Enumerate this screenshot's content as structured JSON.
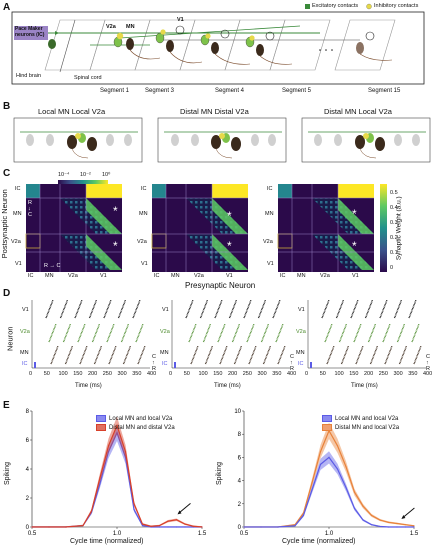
{
  "panelA": {
    "letter": "A",
    "legend_excitatory": "Excitatory contacts",
    "legend_inhibitory": "Inhibitory contacts",
    "pacemaker": "Pace Maker\nneurons (IC)",
    "v2a": "V2a",
    "mn": "MN",
    "v1": "V1",
    "hindbrain": "Hind brain",
    "spinal": "Spinal cord",
    "seg1": "Segment 1",
    "seg3": "Segment 3",
    "seg4": "Segment 4",
    "seg5": "Segment 5",
    "seg15": "Segment 15",
    "colors": {
      "excitatory": "#3a8a3a",
      "inhibitory": "#e6d94a",
      "pacemaker": "#9b84c6"
    }
  },
  "panelB": {
    "letter": "B",
    "titles": [
      "Local MN Local V2a",
      "Distal MN Distal V2a",
      "Distal MN Local V2a"
    ]
  },
  "panelC": {
    "letter": "C",
    "ylabel": "Postsynaptic Neuron",
    "xlabel": "Presynaptic Neuron",
    "xticks": [
      "IC",
      "MN",
      "V2a",
      "V1"
    ],
    "yticks": [
      "IC",
      "MN",
      "V2a",
      "V1"
    ],
    "rc_small": "R\n↓\nC",
    "rc_axis": "R → C",
    "inset_ticks": [
      "10⁻⁴",
      "10⁻²",
      "10⁰"
    ],
    "colorbar_label": "Synaptic Weight (a.u.)",
    "colorbar_ticks": [
      "0.5",
      "0.4",
      "0.3",
      "0.2",
      "0.1",
      "0"
    ],
    "star": "*"
  },
  "panelD": {
    "letter": "D",
    "ylabel": "Neuron",
    "rows": [
      "V1",
      "V2a",
      "MN",
      "IC"
    ],
    "xlabel": "Time (ms)",
    "xticks": [
      "0",
      "50",
      "100",
      "150",
      "200",
      "250",
      "300",
      "350",
      "400"
    ],
    "rc": "C\n↑\nR"
  },
  "panelE": {
    "letter": "E",
    "left_legend": [
      "Local MN and local V2a",
      "Distal MN and distal V2a"
    ],
    "right_legend": [
      "Distal MN and local V2a",
      "Local MN and local V2a"
    ],
    "ylabel": "Spiking",
    "xlabel": "Cycle time (normalized)",
    "yticks_left": [
      "0",
      "2",
      "4",
      "6",
      "8"
    ],
    "yticks_right": [
      "0",
      "2",
      "4",
      "6",
      "8",
      "10"
    ],
    "xticks": [
      "0.5",
      "1.0",
      "1.5"
    ],
    "colors": {
      "blue": "#5b5be6",
      "red": "#d8402a",
      "orange": "#e8823a"
    }
  },
  "chart_data": [
    {
      "type": "line",
      "xlabel": "Cycle time (normalized)",
      "ylabel": "Spiking",
      "xlim": [
        0.5,
        1.5
      ],
      "ylim": [
        0,
        8
      ],
      "x": [
        0.5,
        0.6,
        0.7,
        0.8,
        0.85,
        0.9,
        0.95,
        1.0,
        1.05,
        1.1,
        1.15,
        1.2,
        1.25,
        1.3,
        1.35,
        1.4,
        1.45,
        1.5
      ],
      "series": [
        {
          "name": "Local MN and local V2a",
          "values": [
            0,
            0,
            0,
            0.1,
            1.0,
            3.0,
            5.2,
            6.5,
            4.8,
            1.2,
            0.1,
            0,
            0,
            0,
            0,
            0,
            0,
            0
          ]
        },
        {
          "name": "Distal MN and distal V2a",
          "values": [
            0,
            0,
            0,
            0.1,
            1.1,
            3.4,
            5.6,
            7.0,
            5.2,
            1.6,
            0.2,
            0.05,
            0.1,
            0.4,
            0.5,
            0.2,
            0.05,
            0
          ]
        }
      ],
      "legend": "top-right"
    },
    {
      "type": "line",
      "xlabel": "Cycle time (normalized)",
      "ylabel": "Spiking",
      "xlim": [
        0.5,
        1.5
      ],
      "ylim": [
        0,
        10
      ],
      "x": [
        0.5,
        0.6,
        0.7,
        0.8,
        0.85,
        0.9,
        0.95,
        1.0,
        1.05,
        1.1,
        1.15,
        1.2,
        1.25,
        1.3,
        1.35,
        1.4,
        1.45,
        1.5
      ],
      "series": [
        {
          "name": "Distal MN and local V2a",
          "values": [
            0,
            0,
            0,
            0.2,
            1.2,
            3.8,
            6.5,
            8.3,
            7.0,
            5.2,
            3.0,
            1.8,
            1.0,
            0.6,
            0.4,
            0.3,
            0.2,
            0.1
          ]
        },
        {
          "name": "Local MN and local V2a",
          "values": [
            0,
            0,
            0,
            0.1,
            1.0,
            3.2,
            5.4,
            6.0,
            5.0,
            3.4,
            1.6,
            0.6,
            0.2,
            0.05,
            0,
            0,
            0,
            0
          ]
        }
      ],
      "legend": "top-right"
    }
  ]
}
